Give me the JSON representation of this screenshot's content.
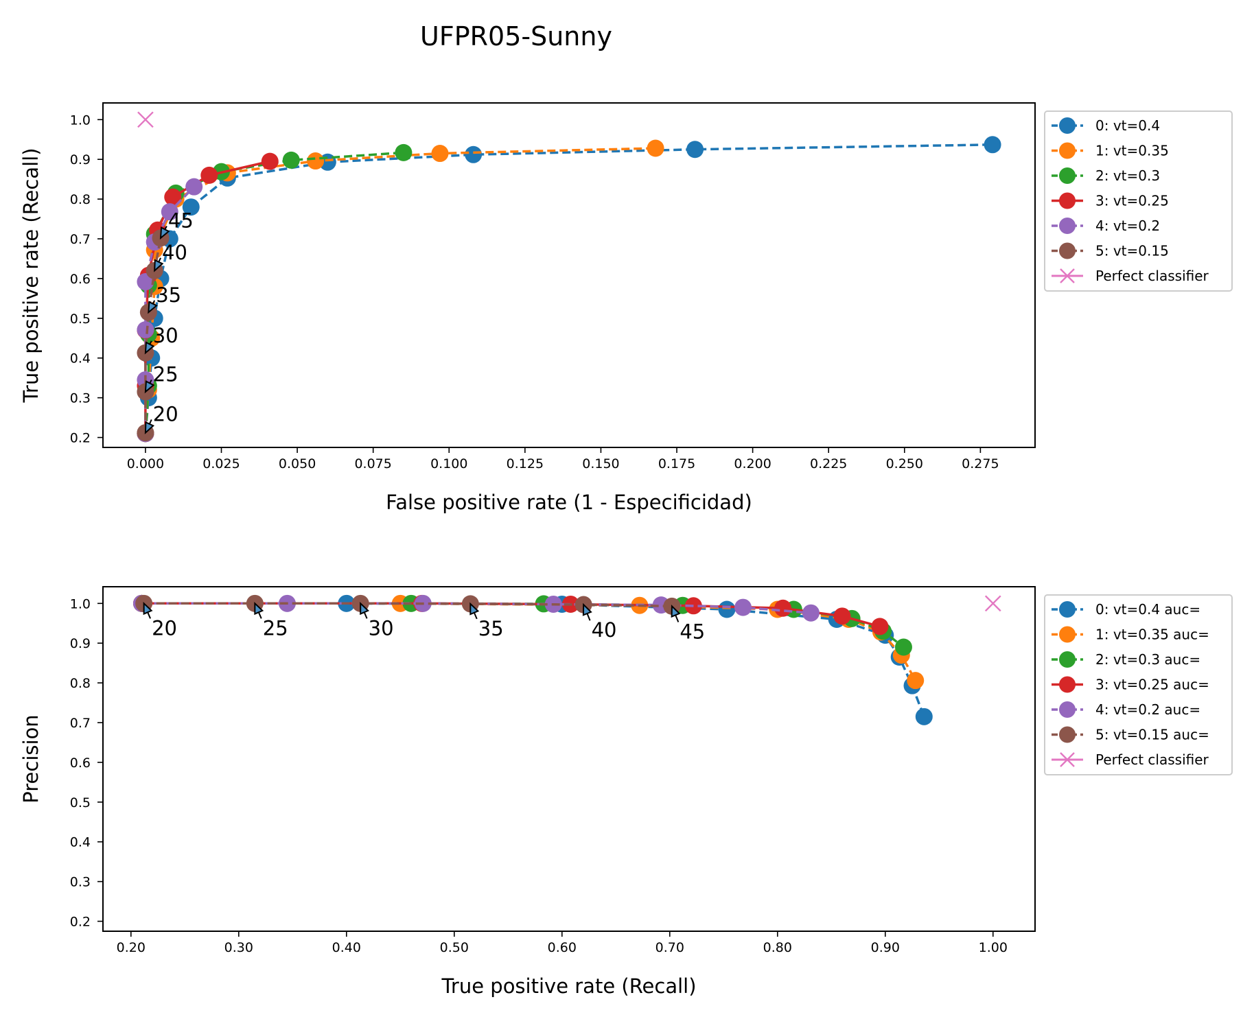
{
  "figure": {
    "title": "UFPR05-Sunny"
  },
  "chart_data": [
    {
      "type": "line",
      "xlabel": "False positive rate (1 - Especificidad)",
      "ylabel": "True positive rate (Recall)",
      "xlim": [
        -0.014,
        0.293
      ],
      "ylim": [
        0.175,
        1.042
      ],
      "xticks": [
        "0.000",
        "0.025",
        "0.050",
        "0.075",
        "0.100",
        "0.125",
        "0.150",
        "0.175",
        "0.200",
        "0.225",
        "0.250",
        "0.275"
      ],
      "yticks": [
        "0.2",
        "0.3",
        "0.4",
        "0.5",
        "0.6",
        "0.7",
        "0.8",
        "0.9",
        "1.0"
      ],
      "grid": false,
      "legend_placement": "outside-right",
      "series": [
        {
          "name": "0: vt=0.4",
          "color": "#1f77b4",
          "dashed": true,
          "points": [
            [
              0.0,
              0.21
            ],
            [
              0.001,
              0.3
            ],
            [
              0.002,
              0.4
            ],
            [
              0.003,
              0.5
            ],
            [
              0.005,
              0.6
            ],
            [
              0.008,
              0.7
            ],
            [
              0.015,
              0.78
            ],
            [
              0.027,
              0.853
            ],
            [
              0.06,
              0.893
            ],
            [
              0.108,
              0.912
            ],
            [
              0.181,
              0.925
            ],
            [
              0.279,
              0.937
            ]
          ]
        },
        {
          "name": "1: vt=0.35",
          "color": "#ff7f0e",
          "dashed": true,
          "points": [
            [
              0.0,
              0.21
            ],
            [
              0.001,
              0.32
            ],
            [
              0.002,
              0.45
            ],
            [
              0.003,
              0.58
            ],
            [
              0.003,
              0.672
            ],
            [
              0.01,
              0.8
            ],
            [
              0.027,
              0.866
            ],
            [
              0.056,
              0.896
            ],
            [
              0.097,
              0.915
            ],
            [
              0.168,
              0.928
            ]
          ]
        },
        {
          "name": "2: vt=0.3",
          "color": "#2ca02c",
          "dashed": true,
          "points": [
            [
              0.0,
              0.21
            ],
            [
              0.001,
              0.33
            ],
            [
              0.001,
              0.46
            ],
            [
              0.001,
              0.583
            ],
            [
              0.003,
              0.712
            ],
            [
              0.01,
              0.815
            ],
            [
              0.025,
              0.869
            ],
            [
              0.048,
              0.898
            ],
            [
              0.085,
              0.917
            ]
          ]
        },
        {
          "name": "3: vt=0.25",
          "color": "#d62728",
          "dashed": false,
          "points": [
            [
              0.0,
              0.21
            ],
            [
              0.0,
              0.33
            ],
            [
              0.0,
              0.47
            ],
            [
              0.001,
              0.608
            ],
            [
              0.004,
              0.722
            ],
            [
              0.009,
              0.805
            ],
            [
              0.021,
              0.86
            ],
            [
              0.041,
              0.895
            ]
          ]
        },
        {
          "name": "4: vt=0.2",
          "color": "#9467bd",
          "dashed": true,
          "points": [
            [
              0.0,
              0.21
            ],
            [
              0.0,
              0.345
            ],
            [
              0.0,
              0.471
            ],
            [
              0.0,
              0.592
            ],
            [
              0.003,
              0.692
            ],
            [
              0.008,
              0.768
            ],
            [
              0.016,
              0.831
            ]
          ]
        },
        {
          "name": "5: vt=0.15",
          "color": "#8c564b",
          "dashed": true,
          "points": [
            [
              0.0,
              0.212
            ],
            [
              0.0,
              0.315
            ],
            [
              0.0,
              0.413
            ],
            [
              0.001,
              0.515
            ],
            [
              0.003,
              0.62
            ],
            [
              0.005,
              0.702
            ]
          ]
        },
        {
          "name": "Perfect classifier",
          "color": "#e377c2",
          "marker": "x",
          "points": [
            [
              0.0,
              1.0
            ]
          ]
        }
      ],
      "annotations": [
        {
          "text": "20",
          "xy": [
            0.0,
            0.212
          ],
          "xytext": [
            0.002,
            0.245
          ]
        },
        {
          "text": "25",
          "xy": [
            0.0,
            0.315
          ],
          "xytext": [
            0.002,
            0.345
          ]
        },
        {
          "text": "30",
          "xy": [
            0.0,
            0.413
          ],
          "xytext": [
            0.002,
            0.443
          ]
        },
        {
          "text": "35",
          "xy": [
            0.001,
            0.515
          ],
          "xytext": [
            0.003,
            0.545
          ]
        },
        {
          "text": "40",
          "xy": [
            0.003,
            0.62
          ],
          "xytext": [
            0.005,
            0.652
          ]
        },
        {
          "text": "45",
          "xy": [
            0.005,
            0.702
          ],
          "xytext": [
            0.007,
            0.732
          ]
        }
      ]
    },
    {
      "type": "line",
      "xlabel": "True positive rate (Recall)",
      "ylabel": "Precision",
      "xlim": [
        0.174,
        1.039
      ],
      "ylim": [
        0.175,
        1.042
      ],
      "xticks": [
        "0.20",
        "0.30",
        "0.40",
        "0.50",
        "0.60",
        "0.70",
        "0.80",
        "0.90",
        "1.00"
      ],
      "yticks": [
        "0.2",
        "0.3",
        "0.4",
        "0.5",
        "0.6",
        "0.7",
        "0.8",
        "0.9",
        "1.0"
      ],
      "grid": false,
      "legend_placement": "outside-right",
      "series": [
        {
          "name": "0: vt=0.4 auc=",
          "color": "#1f77b4",
          "dashed": true,
          "points": [
            [
              0.21,
              1.0
            ],
            [
              0.4,
              1.0
            ],
            [
              0.6,
              0.998
            ],
            [
              0.753,
              0.985
            ],
            [
              0.855,
              0.96
            ],
            [
              0.9,
              0.92
            ],
            [
              0.913,
              0.865
            ],
            [
              0.925,
              0.793
            ],
            [
              0.936,
              0.715
            ]
          ]
        },
        {
          "name": "1: vt=0.35 auc=",
          "color": "#ff7f0e",
          "dashed": true,
          "points": [
            [
              0.21,
              1.0
            ],
            [
              0.45,
              1.0
            ],
            [
              0.672,
              0.995
            ],
            [
              0.8,
              0.985
            ],
            [
              0.866,
              0.96
            ],
            [
              0.896,
              0.928
            ],
            [
              0.915,
              0.87
            ],
            [
              0.928,
              0.806
            ]
          ]
        },
        {
          "name": "2: vt=0.3 auc=",
          "color": "#2ca02c",
          "dashed": true,
          "points": [
            [
              0.21,
              1.0
            ],
            [
              0.46,
              1.0
            ],
            [
              0.583,
              0.999
            ],
            [
              0.712,
              0.995
            ],
            [
              0.815,
              0.985
            ],
            [
              0.869,
              0.962
            ],
            [
              0.898,
              0.93
            ],
            [
              0.917,
              0.89
            ]
          ]
        },
        {
          "name": "3: vt=0.25 auc=",
          "color": "#d62728",
          "dashed": false,
          "points": [
            [
              0.21,
              1.0
            ],
            [
              0.47,
              1.0
            ],
            [
              0.608,
              0.998
            ],
            [
              0.722,
              0.994
            ],
            [
              0.805,
              0.988
            ],
            [
              0.86,
              0.968
            ],
            [
              0.895,
              0.942
            ]
          ]
        },
        {
          "name": "4: vt=0.2 auc=",
          "color": "#9467bd",
          "dashed": true,
          "points": [
            [
              0.21,
              1.0
            ],
            [
              0.345,
              1.0
            ],
            [
              0.471,
              1.0
            ],
            [
              0.592,
              0.998
            ],
            [
              0.692,
              0.996
            ],
            [
              0.768,
              0.99
            ],
            [
              0.831,
              0.976
            ]
          ]
        },
        {
          "name": "5: vt=0.15 auc=",
          "color": "#8c564b",
          "dashed": true,
          "points": [
            [
              0.212,
              1.0
            ],
            [
              0.315,
              1.0
            ],
            [
              0.413,
              1.0
            ],
            [
              0.515,
              0.999
            ],
            [
              0.62,
              0.997
            ],
            [
              0.702,
              0.993
            ]
          ]
        },
        {
          "name": "Perfect classifier",
          "color": "#e377c2",
          "marker": "x",
          "points": [
            [
              1.0,
              1.0
            ]
          ]
        }
      ],
      "annotations": [
        {
          "text": "20",
          "xy": [
            0.212,
            1.0
          ],
          "xytext": [
            0.218,
            0.962
          ]
        },
        {
          "text": "25",
          "xy": [
            0.315,
            1.0
          ],
          "xytext": [
            0.321,
            0.962
          ]
        },
        {
          "text": "30",
          "xy": [
            0.413,
            1.0
          ],
          "xytext": [
            0.419,
            0.962
          ]
        },
        {
          "text": "35",
          "xy": [
            0.515,
            0.999
          ],
          "xytext": [
            0.521,
            0.961
          ]
        },
        {
          "text": "40",
          "xy": [
            0.62,
            0.997
          ],
          "xytext": [
            0.626,
            0.957
          ]
        },
        {
          "text": "45",
          "xy": [
            0.702,
            0.993
          ],
          "xytext": [
            0.708,
            0.953
          ]
        }
      ]
    }
  ]
}
